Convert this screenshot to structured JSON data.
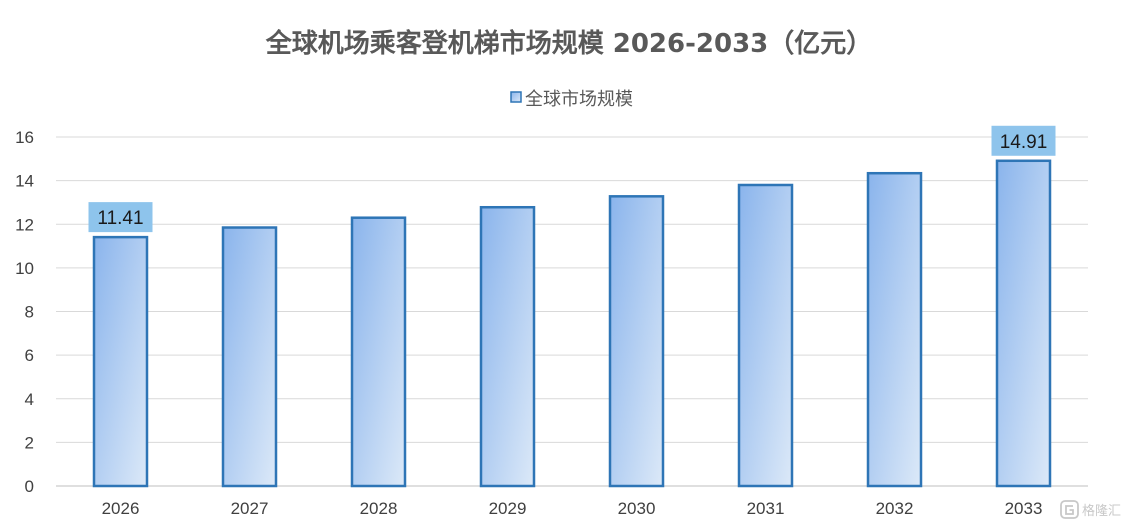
{
  "chart_data": {
    "type": "bar",
    "title": "全球机场乘客登机梯市场规模 2026-2033（亿元）",
    "xlabel": "",
    "ylabel": "",
    "categories": [
      "2026",
      "2027",
      "2028",
      "2029",
      "2030",
      "2031",
      "2032",
      "2033"
    ],
    "series": [
      {
        "name": "全球市场规模",
        "values": [
          11.41,
          11.85,
          12.3,
          12.78,
          13.28,
          13.8,
          14.34,
          14.91
        ]
      }
    ],
    "data_labels": [
      {
        "category": "2026",
        "text": "11.41"
      },
      {
        "category": "2033",
        "text": "14.91"
      }
    ],
    "ylim": [
      0,
      16
    ],
    "yticks": [
      0,
      2,
      4,
      6,
      8,
      10,
      12,
      14,
      16
    ],
    "grid": "horizontal",
    "legend_position": "top-center",
    "colors": {
      "bar_gradient_start": "#8ab4ec",
      "bar_gradient_end": "#dce9f8",
      "bar_border": "#2e75b6",
      "data_label_bg": "#8ec4ec",
      "grid": "#d9d9d9",
      "axis": "#bfbfbf"
    }
  },
  "watermark": {
    "icon": "gelonghui-logo-icon",
    "text": "格隆汇"
  }
}
